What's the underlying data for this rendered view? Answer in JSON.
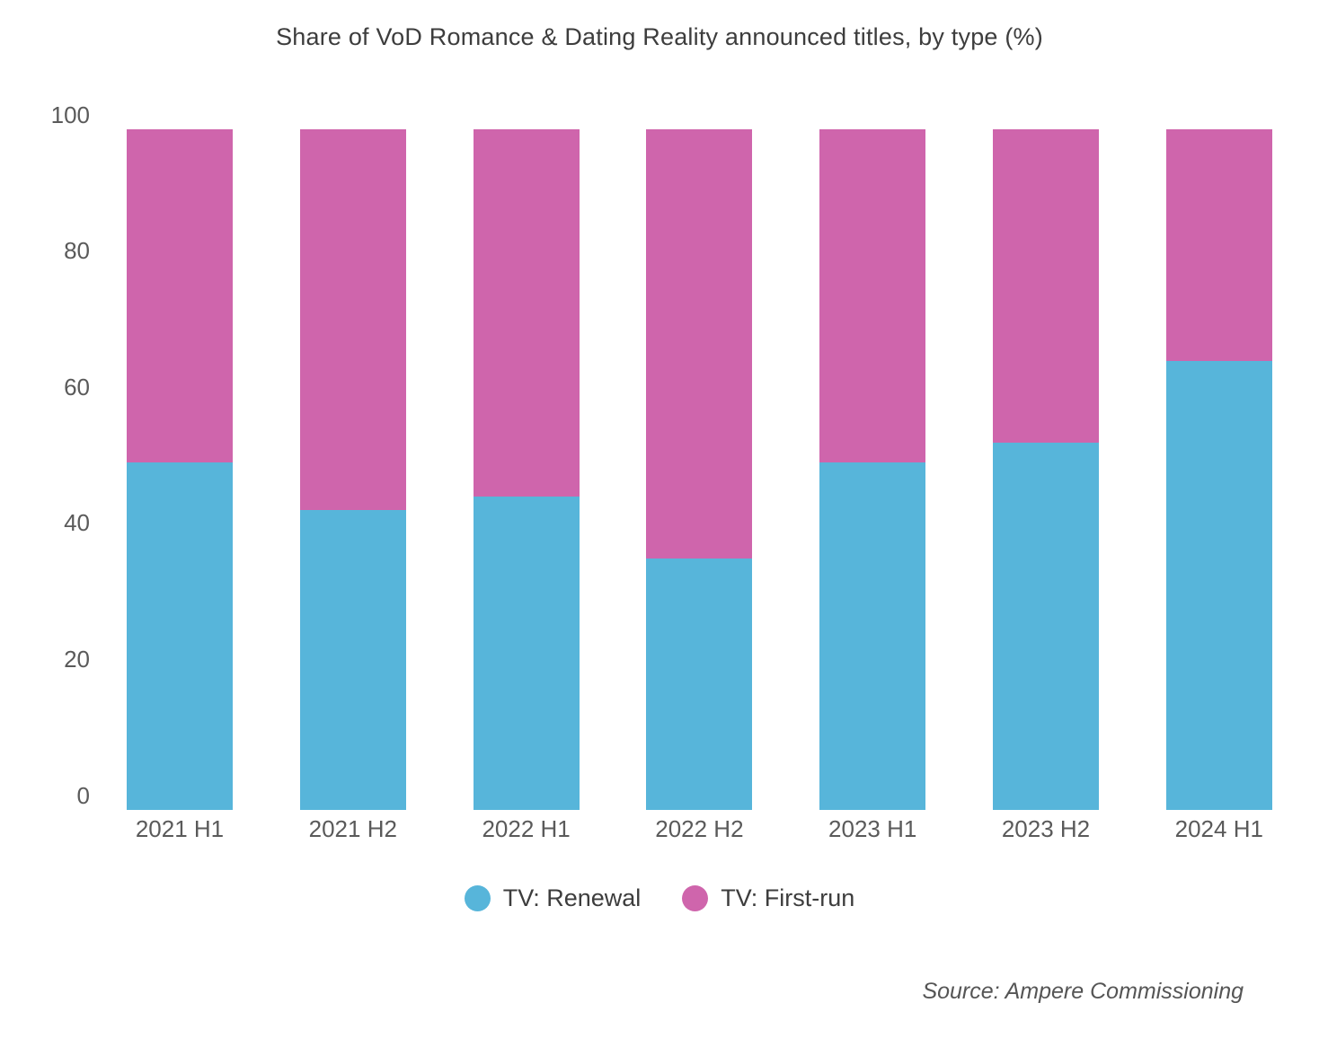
{
  "title": "Share of VoD Romance & Dating Reality announced titles, by type (%)",
  "source": "Source: Ampere Commissioning",
  "chart_data": {
    "type": "bar",
    "stacked": true,
    "title": "Share of VoD Romance & Dating Reality announced titles, by type (%)",
    "categories": [
      "2021 H1",
      "2021 H2",
      "2022 H1",
      "2022 H2",
      "2023 H1",
      "2023 H2",
      "2024 H1"
    ],
    "series": [
      {
        "name": "TV: Renewal",
        "color": "#57B5DA",
        "values": [
          51,
          44,
          46,
          37,
          51,
          54,
          66
        ]
      },
      {
        "name": "TV: First-run",
        "color": "#CF65AC",
        "values": [
          49,
          56,
          54,
          63,
          49,
          46,
          34
        ]
      }
    ],
    "xlabel": "",
    "ylabel": "",
    "ylim": [
      0,
      100
    ],
    "yticks": [
      0,
      20,
      40,
      60,
      80,
      100
    ],
    "grid": false,
    "legend_position": "bottom",
    "source_label": "Source: Ampere Commissioning"
  }
}
